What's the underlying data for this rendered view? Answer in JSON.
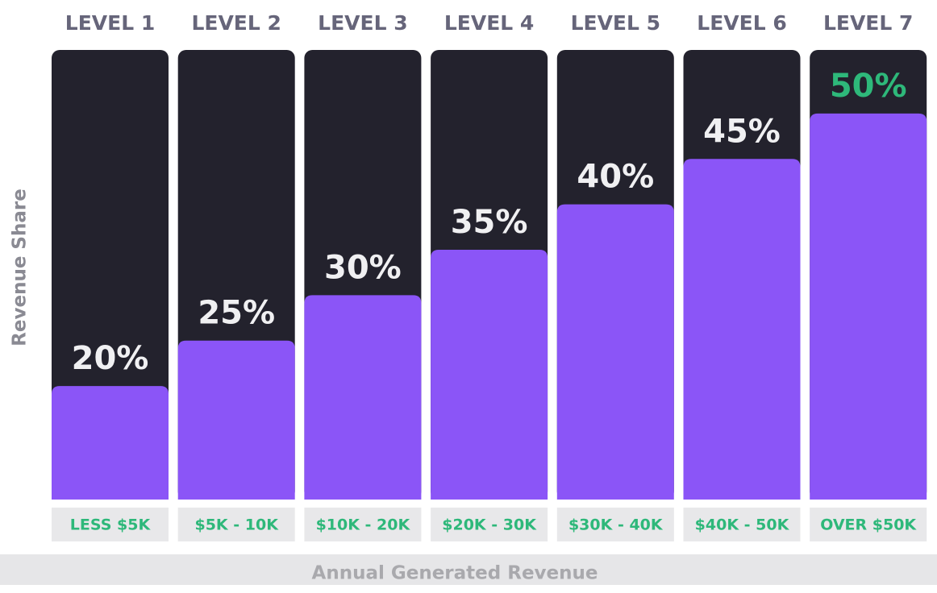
{
  "chart_data": {
    "type": "bar",
    "categories": [
      "LEVEL 1",
      "LEVEL 2",
      "LEVEL 3",
      "LEVEL 4",
      "LEVEL 5",
      "LEVEL 6",
      "LEVEL 7"
    ],
    "ranges": [
      "LESS $5K",
      "$5K - 10K",
      "$10K - 20K",
      "$20K - 30K",
      "$30K - 40K",
      "$40K - 50K",
      "OVER $50K"
    ],
    "values": [
      20,
      25,
      30,
      35,
      40,
      45,
      50
    ],
    "value_labels": [
      "20%",
      "25%",
      "30%",
      "35%",
      "40%",
      "45%",
      "50%"
    ],
    "value_label_colors": [
      "#f0f0f2",
      "#f0f0f2",
      "#f0f0f2",
      "#f0f0f2",
      "#f0f0f2",
      "#f0f0f2",
      "#2eb87a"
    ],
    "ylim": [
      7.5,
      57
    ],
    "color": "#8b55f7",
    "ylabel": "Revenue Share",
    "xlabel": "Annual Generated Revenue"
  }
}
